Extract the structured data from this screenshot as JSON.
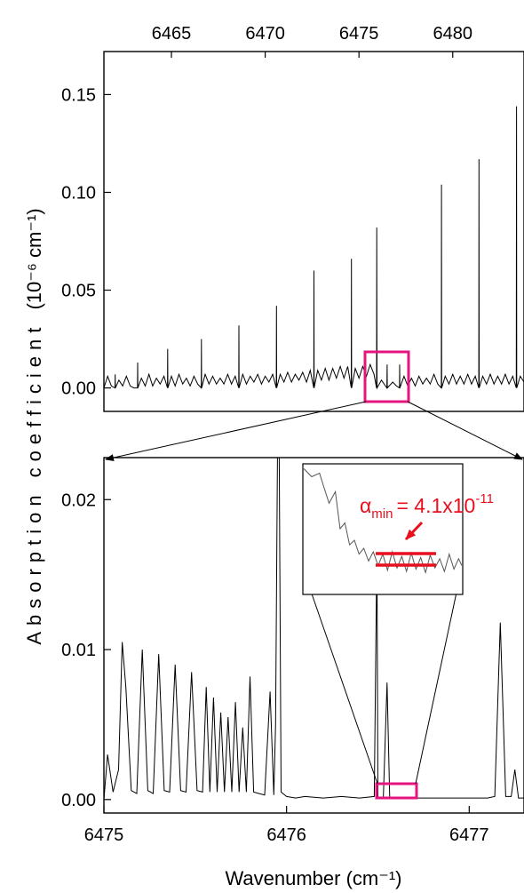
{
  "colors": {
    "trace": "#000000",
    "highlight_box": "#e5157f",
    "annotation": "#e8101e"
  },
  "shared_ylabel": "Absorption coefficient",
  "chart_data": [
    {
      "id": "overview",
      "type": "line",
      "xlim": [
        6461.4,
        6483.8
      ],
      "ylim": [
        -0.012,
        0.172
      ],
      "x_tick_position": "top",
      "xticks": [
        6465,
        6470,
        6475,
        6480
      ],
      "yticks": [
        0.0,
        0.05,
        0.1,
        0.15
      ],
      "ylabel_unit": "(10⁻⁶ cm⁻¹)",
      "series": [
        {
          "x": [
            6461.4,
            6461.6,
            6461.8,
            6461.99,
            6462.0,
            6462.01,
            6462.2,
            6462.4,
            6462.6,
            6462.8,
            6463.0,
            6463.19,
            6463.2,
            6463.21,
            6463.4,
            6463.6,
            6463.8,
            6464.0,
            6464.2,
            6464.4,
            6464.6,
            6464.79,
            6464.8,
            6464.81,
            6465.0,
            6465.2,
            6465.4,
            6465.6,
            6465.8,
            6466.0,
            6466.2,
            6466.4,
            6466.59,
            6466.6,
            6466.61,
            6466.8,
            6467.0,
            6467.2,
            6467.4,
            6467.6,
            6467.8,
            6468.0,
            6468.2,
            6468.4,
            6468.59,
            6468.6,
            6468.61,
            6468.8,
            6469.0,
            6469.2,
            6469.4,
            6469.6,
            6469.8,
            6470.0,
            6470.2,
            6470.4,
            6470.59,
            6470.6,
            6470.61,
            6470.8,
            6471.0,
            6471.2,
            6471.4,
            6471.6,
            6471.8,
            6472.0,
            6472.2,
            6472.4,
            6472.59,
            6472.6,
            6472.61,
            6472.8,
            6473.0,
            6473.2,
            6473.4,
            6473.6,
            6473.8,
            6474.0,
            6474.2,
            6474.4,
            6474.59,
            6474.6,
            6474.61,
            6474.8,
            6475.0,
            6475.2,
            6475.4,
            6475.6,
            6475.8,
            6475.94,
            6475.95,
            6475.96,
            6476.2,
            6476.49,
            6476.5,
            6476.51,
            6476.8,
            6477.0,
            6477.16,
            6477.17,
            6477.18,
            6477.4,
            6477.6,
            6477.8,
            6478.0,
            6478.2,
            6478.4,
            6478.6,
            6478.8,
            6479.0,
            6479.2,
            6479.39,
            6479.4,
            6479.41,
            6479.6,
            6479.8,
            6480.0,
            6480.2,
            6480.4,
            6480.6,
            6480.8,
            6481.0,
            6481.2,
            6481.39,
            6481.4,
            6481.41,
            6481.6,
            6481.8,
            6482.0,
            6482.2,
            6482.4,
            6482.6,
            6482.8,
            6483.0,
            6483.2,
            6483.39,
            6483.4,
            6483.41,
            6483.6,
            6483.8
          ],
          "y": [
            0.0,
            0.006,
            0.001,
            0.0,
            0.007,
            0.0,
            0.004,
            0.001,
            0.006,
            0.001,
            0.0,
            0.0,
            0.013,
            0.0,
            0.005,
            0.001,
            0.007,
            0.001,
            0.005,
            0.002,
            0.006,
            0.0,
            0.02,
            0.0,
            0.006,
            0.001,
            0.007,
            0.002,
            0.005,
            0.001,
            0.006,
            0.002,
            0.0,
            0.025,
            0.0,
            0.007,
            0.002,
            0.006,
            0.002,
            0.005,
            0.002,
            0.007,
            0.002,
            0.006,
            0.0,
            0.032,
            0.0,
            0.007,
            0.002,
            0.006,
            0.003,
            0.007,
            0.002,
            0.006,
            0.003,
            0.007,
            0.0,
            0.042,
            0.0,
            0.007,
            0.003,
            0.008,
            0.003,
            0.007,
            0.004,
            0.008,
            0.003,
            0.009,
            0.0,
            0.06,
            0.0,
            0.009,
            0.004,
            0.01,
            0.004,
            0.01,
            0.005,
            0.011,
            0.005,
            0.011,
            0.0,
            0.066,
            0.0,
            0.01,
            0.005,
            0.011,
            0.006,
            0.012,
            0.007,
            0.0,
            0.082,
            0.0,
            0.004,
            0.0,
            0.012,
            0.0,
            0.003,
            0.001,
            0.0,
            0.012,
            0.0,
            0.006,
            0.001,
            0.005,
            0.001,
            0.006,
            0.002,
            0.005,
            0.002,
            0.007,
            0.002,
            0.0,
            0.104,
            0.0,
            0.006,
            0.002,
            0.007,
            0.002,
            0.006,
            0.002,
            0.007,
            0.002,
            0.006,
            0.0,
            0.117,
            0.0,
            0.006,
            0.002,
            0.007,
            0.002,
            0.006,
            0.002,
            0.007,
            0.002,
            0.006,
            0.0,
            0.144,
            0.0,
            0.006,
            0.003
          ]
        }
      ]
    },
    {
      "id": "zoom",
      "type": "line",
      "xlim": [
        6475.0,
        6477.3
      ],
      "ylim": [
        -0.0009,
        0.0228
      ],
      "xticks": [
        6475,
        6476,
        6477
      ],
      "yticks": [
        0.0,
        0.01,
        0.02
      ],
      "xlabel": "Wavenumber (cm⁻¹)",
      "series": [
        {
          "x": [
            6475.0,
            6475.02,
            6475.05,
            6475.08,
            6475.1,
            6475.12,
            6475.15,
            6475.18,
            6475.21,
            6475.24,
            6475.27,
            6475.3,
            6475.33,
            6475.36,
            6475.39,
            6475.42,
            6475.45,
            6475.48,
            6475.51,
            6475.54,
            6475.56,
            6475.58,
            6475.6,
            6475.62,
            6475.64,
            6475.66,
            6475.68,
            6475.7,
            6475.72,
            6475.74,
            6475.76,
            6475.78,
            6475.8,
            6475.82,
            6475.85,
            6475.88,
            6475.91,
            6475.93,
            6475.94,
            6475.95,
            6475.955,
            6475.96,
            6475.97,
            6476.0,
            6476.05,
            6476.1,
            6476.2,
            6476.3,
            6476.4,
            6476.48,
            6476.495,
            6476.5,
            6476.51,
            6476.53,
            6476.55,
            6476.565,
            6476.58,
            6476.6,
            6476.7,
            6476.8,
            6476.9,
            6477.0,
            6477.1,
            6477.14,
            6477.17,
            6477.2,
            6477.23,
            6477.25,
            6477.27,
            6477.3
          ],
          "y": [
            0.0,
            0.003,
            0.0005,
            0.002,
            0.0105,
            0.0075,
            0.0006,
            0.0004,
            0.01,
            0.0006,
            0.0004,
            0.0097,
            0.0006,
            0.0005,
            0.009,
            0.0006,
            0.0005,
            0.0085,
            0.0006,
            0.0005,
            0.0075,
            0.0005,
            0.0068,
            0.0005,
            0.0058,
            0.0005,
            0.0055,
            0.0005,
            0.0065,
            0.0005,
            0.0048,
            0.0005,
            0.0082,
            0.0005,
            0.0004,
            0.0003,
            0.0072,
            0.0003,
            0.005,
            0.0228,
            0.0228,
            0.0228,
            0.0005,
            0.0002,
            0.0001,
            0.0002,
            0.0001,
            0.0002,
            0.0001,
            0.0002,
            0.017,
            0.0002,
            0.0001,
            0.0001,
            0.0078,
            0.0001,
            0.0001,
            0.0001,
            0.0001,
            0.0001,
            0.0001,
            0.0001,
            0.0001,
            0.0002,
            0.0118,
            0.0002,
            0.0002,
            0.002,
            0.0001,
            0.0001
          ]
        }
      ]
    },
    {
      "id": "inset",
      "type": "line",
      "series": [
        {
          "x": [
            0.0,
            0.05,
            0.1,
            0.13,
            0.16,
            0.2,
            0.23,
            0.26,
            0.29,
            0.32,
            0.35,
            0.38,
            0.41,
            0.44,
            0.47,
            0.5,
            0.53,
            0.56,
            0.59,
            0.62,
            0.65,
            0.68,
            0.71,
            0.74,
            0.77,
            0.8,
            0.83,
            0.86,
            0.89,
            0.92,
            0.95,
            0.98,
            1.0
          ],
          "y": [
            1.02,
            0.95,
            0.98,
            0.85,
            0.72,
            0.82,
            0.5,
            0.55,
            0.36,
            0.4,
            0.28,
            0.33,
            0.22,
            0.3,
            0.18,
            0.28,
            0.14,
            0.3,
            0.16,
            0.26,
            0.13,
            0.29,
            0.15,
            0.25,
            0.12,
            0.27,
            0.16,
            0.24,
            0.13,
            0.28,
            0.15,
            0.24,
            0.18
          ]
        }
      ],
      "annotation": {
        "symbol": "α",
        "subscript": "min",
        "value_text": "= 4.1x10",
        "exponent": "-11"
      }
    }
  ]
}
